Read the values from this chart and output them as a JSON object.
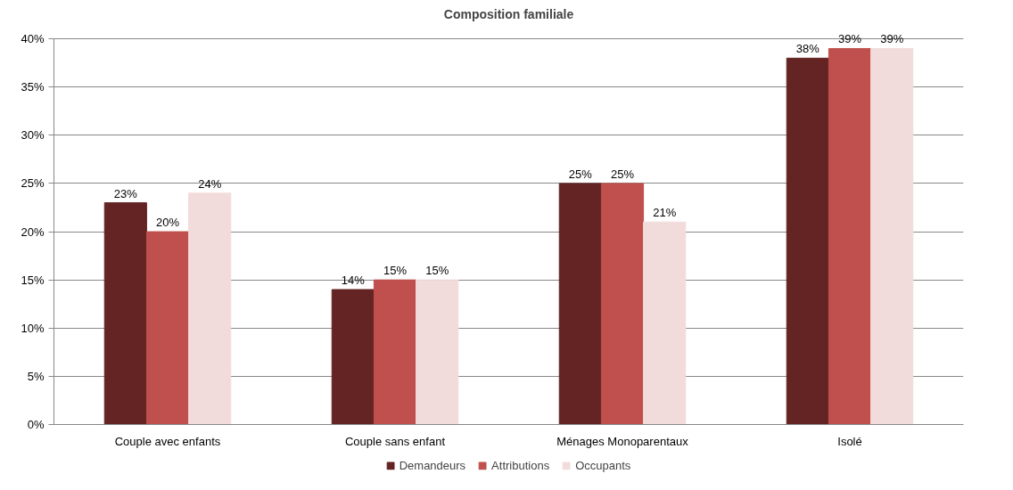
{
  "chart_data": {
    "type": "bar",
    "title": "Composition familiale",
    "categories": [
      "Couple avec enfants",
      "Couple sans enfant",
      "Ménages Monoparentaux",
      "Isolé"
    ],
    "series": [
      {
        "name": "Demandeurs",
        "color": "#632423",
        "values": [
          23,
          14,
          25,
          38
        ],
        "value_labels": [
          "23%",
          "14%",
          "25%",
          "38%"
        ]
      },
      {
        "name": "Attributions",
        "color": "#c0504d",
        "values": [
          20,
          15,
          25,
          39
        ],
        "value_labels": [
          "20%",
          "15%",
          "25%",
          "39%"
        ]
      },
      {
        "name": "Occupants",
        "color": "#f2dcdb",
        "values": [
          24,
          15,
          21,
          39
        ],
        "value_labels": [
          "24%",
          "15%",
          "21%",
          "39%"
        ]
      }
    ],
    "ylim": [
      0,
      40
    ],
    "yticks": [
      {
        "value": 0,
        "label": "0%"
      },
      {
        "value": 5,
        "label": "5%"
      },
      {
        "value": 10,
        "label": "10%"
      },
      {
        "value": 15,
        "label": "15%"
      },
      {
        "value": 20,
        "label": "20%"
      },
      {
        "value": 25,
        "label": "25%"
      },
      {
        "value": 30,
        "label": "30%"
      },
      {
        "value": 35,
        "label": "35%"
      },
      {
        "value": 40,
        "label": "40%"
      }
    ],
    "grid": "y",
    "legend": "bottom"
  }
}
